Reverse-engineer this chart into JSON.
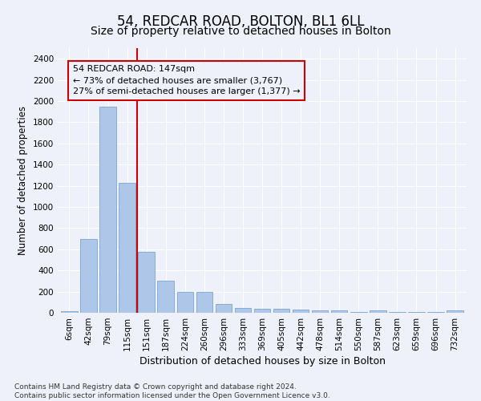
{
  "title1": "54, REDCAR ROAD, BOLTON, BL1 6LL",
  "title2": "Size of property relative to detached houses in Bolton",
  "xlabel": "Distribution of detached houses by size in Bolton",
  "ylabel": "Number of detached properties",
  "categories": [
    "6sqm",
    "42sqm",
    "79sqm",
    "115sqm",
    "151sqm",
    "187sqm",
    "224sqm",
    "260sqm",
    "296sqm",
    "333sqm",
    "369sqm",
    "405sqm",
    "442sqm",
    "478sqm",
    "514sqm",
    "550sqm",
    "587sqm",
    "623sqm",
    "659sqm",
    "696sqm",
    "732sqm"
  ],
  "values": [
    15,
    700,
    1950,
    1225,
    575,
    305,
    200,
    200,
    80,
    45,
    35,
    35,
    30,
    20,
    20,
    5,
    20,
    5,
    5,
    5,
    20
  ],
  "bar_color": "#aec6e8",
  "bar_edge_color": "#6699cc",
  "vline_color": "#cc0000",
  "annotation_text": "54 REDCAR ROAD: 147sqm\n← 73% of detached houses are smaller (3,767)\n27% of semi-detached houses are larger (1,377) →",
  "ylim": [
    0,
    2500
  ],
  "yticks": [
    0,
    200,
    400,
    600,
    800,
    1000,
    1200,
    1400,
    1600,
    1800,
    2000,
    2200,
    2400
  ],
  "footnote": "Contains HM Land Registry data © Crown copyright and database right 2024.\nContains public sector information licensed under the Open Government Licence v3.0.",
  "bg_color": "#eef1fa",
  "grid_color": "#ffffff",
  "title1_fontsize": 12,
  "title2_fontsize": 10,
  "xlabel_fontsize": 9,
  "ylabel_fontsize": 8.5,
  "tick_fontsize": 7.5,
  "annot_fontsize": 8,
  "footnote_fontsize": 6.5
}
